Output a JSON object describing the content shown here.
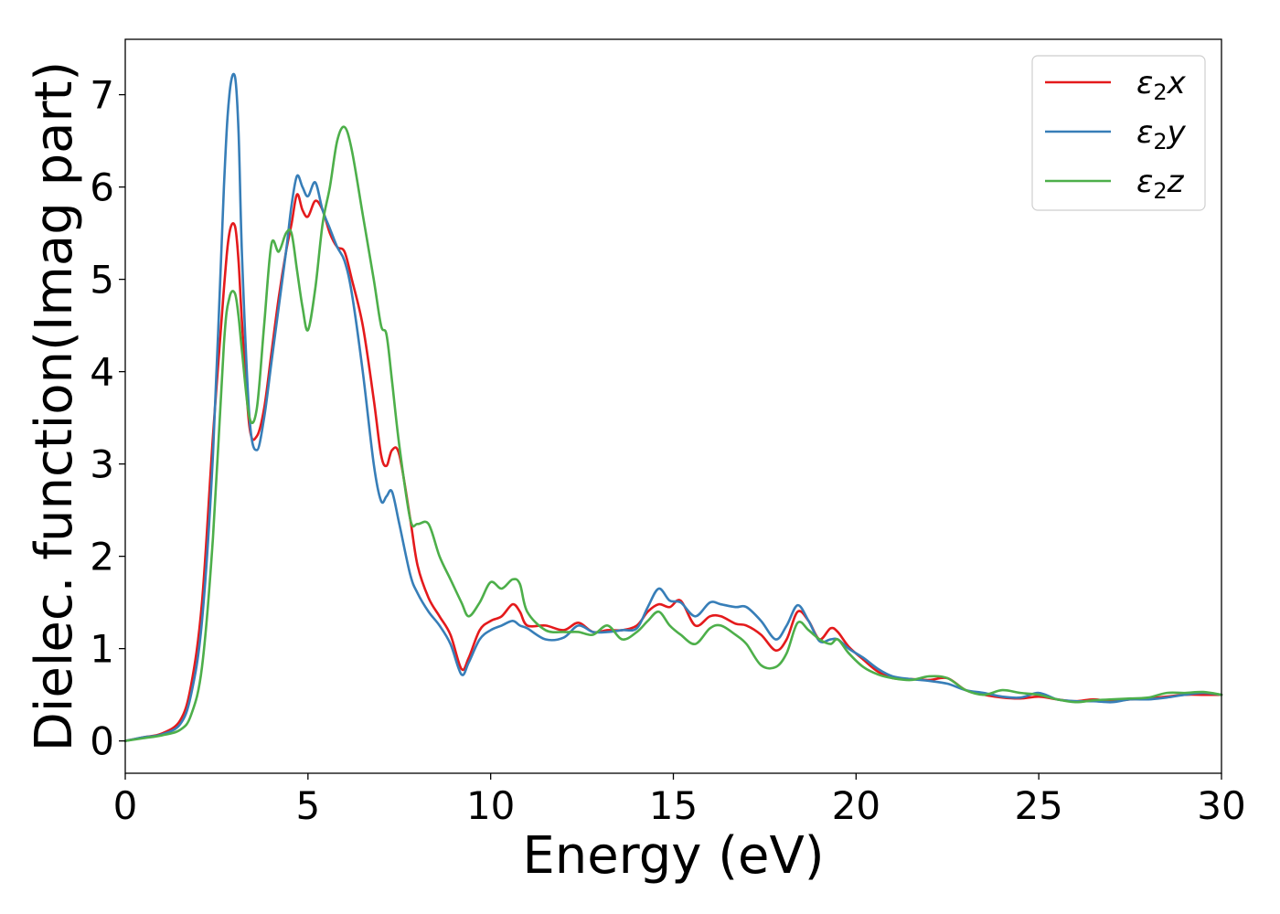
{
  "chart_data": {
    "type": "line",
    "title": "",
    "xlabel": "Energy (eV)",
    "ylabel": "Dielec. function(Imag part)",
    "xlim": [
      0,
      30
    ],
    "ylim": [
      -0.35,
      7.6
    ],
    "xticks": [
      0,
      5,
      10,
      15,
      20,
      25,
      30
    ],
    "yticks": [
      0,
      1,
      2,
      3,
      4,
      5,
      6,
      7
    ],
    "grid": false,
    "legend_position": "top-right",
    "series": [
      {
        "name": "ε₂x",
        "legend_base": "ε",
        "legend_sub": "2",
        "legend_tail": "x",
        "color": "#e41a1c",
        "x": [
          0,
          0.5,
          1,
          1.5,
          1.8,
          2.1,
          2.4,
          2.7,
          2.85,
          3.0,
          3.1,
          3.2,
          3.4,
          3.6,
          3.8,
          4.0,
          4.2,
          4.4,
          4.55,
          4.7,
          4.85,
          5.0,
          5.2,
          5.4,
          5.6,
          5.8,
          6.0,
          6.2,
          6.5,
          6.8,
          7.0,
          7.15,
          7.3,
          7.5,
          7.8,
          8.0,
          8.3,
          8.6,
          8.9,
          9.2,
          9.4,
          9.7,
          10.0,
          10.3,
          10.6,
          10.8,
          11.0,
          11.5,
          12.0,
          12.4,
          12.8,
          13.2,
          13.6,
          14.0,
          14.3,
          14.6,
          14.9,
          15.2,
          15.6,
          16.0,
          16.3,
          16.7,
          17.0,
          17.4,
          17.8,
          18.1,
          18.4,
          18.7,
          19.0,
          19.3,
          19.5,
          19.8,
          20.2,
          20.6,
          21.0,
          21.5,
          22.0,
          22.5,
          23.0,
          23.5,
          24.0,
          24.5,
          25.0,
          25.5,
          26.0,
          26.5,
          27.0,
          27.5,
          28.0,
          28.5,
          29.0,
          29.5,
          30.0
        ],
        "y": [
          0.0,
          0.04,
          0.08,
          0.22,
          0.6,
          1.5,
          3.3,
          4.9,
          5.5,
          5.58,
          5.2,
          4.5,
          3.4,
          3.3,
          3.6,
          4.2,
          4.8,
          5.3,
          5.6,
          5.92,
          5.75,
          5.68,
          5.85,
          5.75,
          5.5,
          5.35,
          5.3,
          5.0,
          4.5,
          3.7,
          3.1,
          2.98,
          3.15,
          3.1,
          2.4,
          1.9,
          1.55,
          1.35,
          1.15,
          0.78,
          0.9,
          1.2,
          1.3,
          1.35,
          1.48,
          1.4,
          1.25,
          1.25,
          1.2,
          1.28,
          1.18,
          1.2,
          1.2,
          1.25,
          1.4,
          1.48,
          1.45,
          1.52,
          1.25,
          1.35,
          1.35,
          1.27,
          1.25,
          1.15,
          0.98,
          1.1,
          1.4,
          1.3,
          1.1,
          1.22,
          1.18,
          1.02,
          0.88,
          0.75,
          0.68,
          0.67,
          0.66,
          0.68,
          0.55,
          0.5,
          0.47,
          0.46,
          0.48,
          0.45,
          0.43,
          0.45,
          0.43,
          0.45,
          0.46,
          0.48,
          0.5,
          0.5,
          0.5
        ]
      },
      {
        "name": "ε₂y",
        "legend_base": "ε",
        "legend_sub": "2",
        "legend_tail": "y",
        "color": "#377eb8",
        "x": [
          0,
          0.5,
          1,
          1.5,
          1.8,
          2.1,
          2.4,
          2.7,
          2.85,
          3.0,
          3.1,
          3.2,
          3.4,
          3.6,
          3.8,
          4.0,
          4.2,
          4.4,
          4.55,
          4.7,
          4.85,
          5.0,
          5.2,
          5.4,
          5.6,
          5.8,
          6.0,
          6.2,
          6.5,
          6.8,
          7.0,
          7.15,
          7.3,
          7.5,
          7.8,
          8.0,
          8.3,
          8.6,
          8.9,
          9.2,
          9.4,
          9.7,
          10.0,
          10.3,
          10.6,
          10.8,
          11.0,
          11.5,
          12.0,
          12.4,
          12.8,
          13.2,
          13.6,
          14.0,
          14.3,
          14.6,
          14.9,
          15.2,
          15.6,
          16.0,
          16.3,
          16.7,
          17.0,
          17.4,
          17.8,
          18.1,
          18.4,
          18.7,
          19.0,
          19.3,
          19.5,
          19.8,
          20.2,
          20.6,
          21.0,
          21.5,
          22.0,
          22.5,
          23.0,
          23.5,
          24.0,
          24.5,
          25.0,
          25.5,
          26.0,
          26.5,
          27.0,
          27.5,
          28.0,
          28.5,
          29.0,
          29.5,
          30.0
        ],
        "y": [
          0.0,
          0.04,
          0.07,
          0.18,
          0.5,
          1.3,
          3.1,
          6.0,
          7.0,
          7.2,
          6.6,
          5.2,
          3.5,
          3.15,
          3.5,
          4.1,
          4.7,
          5.3,
          5.8,
          6.12,
          6.0,
          5.9,
          6.05,
          5.75,
          5.55,
          5.35,
          5.2,
          4.85,
          4.0,
          3.0,
          2.6,
          2.65,
          2.7,
          2.35,
          1.8,
          1.6,
          1.4,
          1.25,
          1.05,
          0.72,
          0.85,
          1.1,
          1.2,
          1.25,
          1.3,
          1.25,
          1.22,
          1.1,
          1.12,
          1.25,
          1.18,
          1.18,
          1.2,
          1.22,
          1.45,
          1.65,
          1.52,
          1.5,
          1.35,
          1.5,
          1.48,
          1.45,
          1.45,
          1.3,
          1.1,
          1.25,
          1.47,
          1.3,
          1.08,
          1.1,
          1.1,
          1.0,
          0.9,
          0.78,
          0.7,
          0.67,
          0.65,
          0.62,
          0.55,
          0.52,
          0.48,
          0.47,
          0.52,
          0.45,
          0.43,
          0.43,
          0.42,
          0.45,
          0.45,
          0.47,
          0.5,
          0.52,
          0.5
        ]
      },
      {
        "name": "ε₂z",
        "legend_base": "ε",
        "legend_sub": "2",
        "legend_tail": "z",
        "color": "#4daf4a",
        "x": [
          0,
          0.5,
          1,
          1.5,
          1.8,
          2.1,
          2.4,
          2.7,
          2.85,
          3.0,
          3.1,
          3.2,
          3.4,
          3.6,
          3.8,
          4.0,
          4.2,
          4.4,
          4.55,
          4.7,
          4.85,
          5.0,
          5.2,
          5.4,
          5.6,
          5.8,
          6.0,
          6.2,
          6.5,
          6.8,
          7.0,
          7.15,
          7.3,
          7.5,
          7.8,
          8.0,
          8.3,
          8.6,
          8.9,
          9.2,
          9.4,
          9.7,
          10.0,
          10.3,
          10.6,
          10.8,
          11.0,
          11.5,
          12.0,
          12.4,
          12.8,
          13.2,
          13.6,
          14.0,
          14.3,
          14.6,
          14.9,
          15.2,
          15.6,
          16.0,
          16.3,
          16.7,
          17.0,
          17.4,
          17.8,
          18.1,
          18.4,
          18.7,
          19.0,
          19.3,
          19.5,
          19.8,
          20.2,
          20.6,
          21.0,
          21.5,
          22.0,
          22.5,
          23.0,
          23.5,
          24.0,
          24.5,
          25.0,
          25.5,
          26.0,
          26.5,
          27.0,
          27.5,
          28.0,
          28.5,
          29.0,
          29.5,
          30.0
        ],
        "y": [
          0.0,
          0.03,
          0.06,
          0.12,
          0.28,
          0.8,
          2.2,
          4.3,
          4.8,
          4.85,
          4.6,
          4.2,
          3.5,
          3.6,
          4.5,
          5.38,
          5.3,
          5.5,
          5.5,
          5.1,
          4.7,
          4.45,
          4.9,
          5.6,
          6.0,
          6.5,
          6.65,
          6.4,
          5.7,
          5.0,
          4.5,
          4.4,
          3.9,
          3.2,
          2.4,
          2.35,
          2.35,
          2.0,
          1.75,
          1.5,
          1.35,
          1.5,
          1.72,
          1.65,
          1.75,
          1.7,
          1.4,
          1.2,
          1.18,
          1.18,
          1.15,
          1.25,
          1.1,
          1.18,
          1.3,
          1.4,
          1.25,
          1.15,
          1.05,
          1.22,
          1.25,
          1.15,
          1.05,
          0.82,
          0.8,
          0.95,
          1.28,
          1.2,
          1.1,
          1.05,
          1.1,
          0.95,
          0.8,
          0.72,
          0.68,
          0.66,
          0.7,
          0.68,
          0.55,
          0.5,
          0.55,
          0.52,
          0.5,
          0.45,
          0.42,
          0.44,
          0.45,
          0.46,
          0.47,
          0.52,
          0.52,
          0.53,
          0.5
        ]
      }
    ]
  }
}
